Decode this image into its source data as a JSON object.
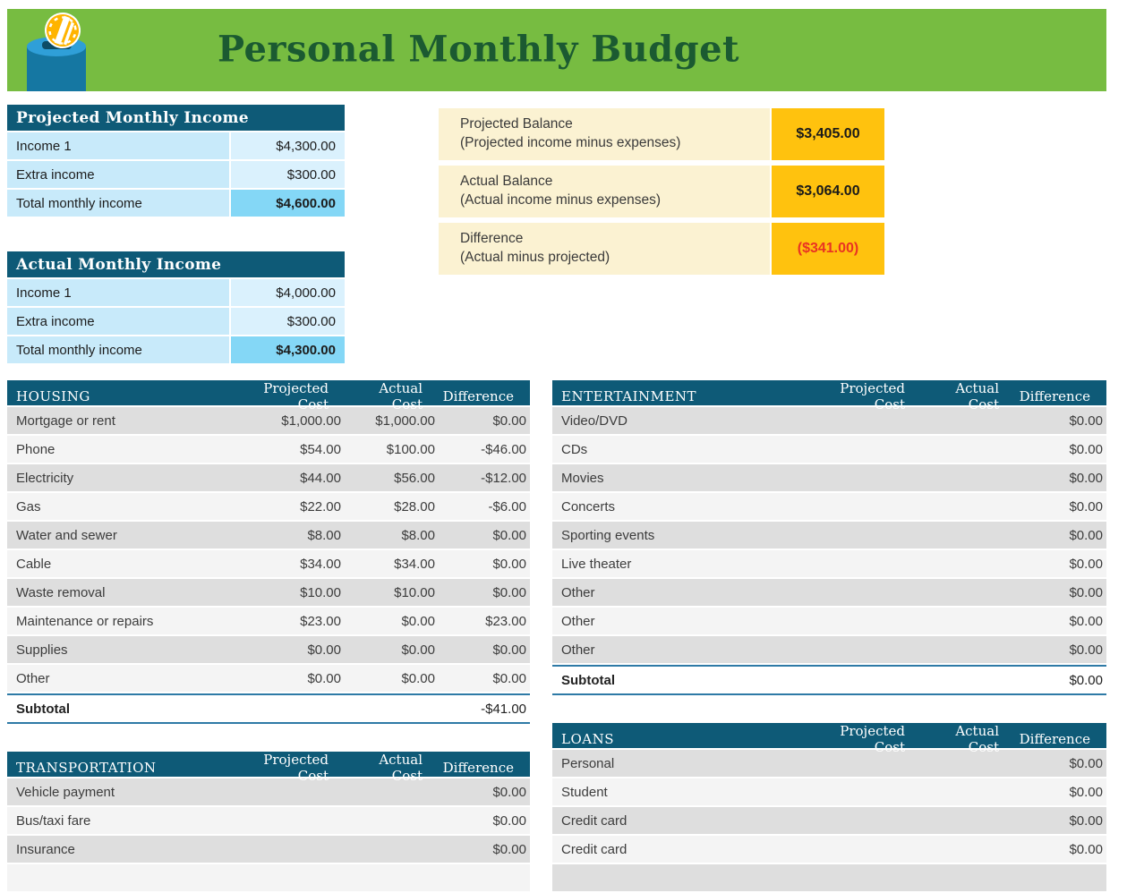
{
  "page": {
    "title": "Personal Monthly Budget"
  },
  "icon": {
    "name": "coin-bank-icon"
  },
  "income_tables": [
    {
      "title": "Projected Monthly Income",
      "rows": [
        {
          "label": "Income 1",
          "value": "$4,300.00",
          "total": false
        },
        {
          "label": "Extra income",
          "value": "$300.00",
          "total": false
        },
        {
          "label": "Total monthly income",
          "value": "$4,600.00",
          "total": true
        }
      ]
    },
    {
      "title": "Actual Monthly Income",
      "rows": [
        {
          "label": "Income 1",
          "value": "$4,000.00",
          "total": false
        },
        {
          "label": "Extra income",
          "value": "$300.00",
          "total": false
        },
        {
          "label": "Total monthly income",
          "value": "$4,300.00",
          "total": true
        }
      ]
    }
  ],
  "balance_summary": {
    "rows": [
      {
        "label": "Projected Balance",
        "note": "(Projected income minus expenses)",
        "value": "$3,405.00",
        "negative": false
      },
      {
        "label": "Actual Balance",
        "note": "(Actual income minus expenses)",
        "value": "$3,064.00",
        "negative": false
      },
      {
        "label": "Difference",
        "note": "(Actual minus projected)",
        "value": "($341.00)",
        "negative": true
      }
    ]
  },
  "expense_columns": [
    "Projected Cost",
    "Actual Cost",
    "Difference"
  ],
  "expense_tables": [
    {
      "name": "HOUSING",
      "column": "left",
      "rows": [
        [
          "Mortgage or rent",
          "$1,000.00",
          "$1,000.00",
          "$0.00"
        ],
        [
          "Phone",
          "$54.00",
          "$100.00",
          "-$46.00"
        ],
        [
          "Electricity",
          "$44.00",
          "$56.00",
          "-$12.00"
        ],
        [
          "Gas",
          "$22.00",
          "$28.00",
          "-$6.00"
        ],
        [
          "Water and sewer",
          "$8.00",
          "$8.00",
          "$0.00"
        ],
        [
          "Cable",
          "$34.00",
          "$34.00",
          "$0.00"
        ],
        [
          "Waste removal",
          "$10.00",
          "$10.00",
          "$0.00"
        ],
        [
          "Maintenance or repairs",
          "$23.00",
          "$0.00",
          "$23.00"
        ],
        [
          "Supplies",
          "$0.00",
          "$0.00",
          "$0.00"
        ],
        [
          "Other",
          "$0.00",
          "$0.00",
          "$0.00"
        ]
      ],
      "subtotal": {
        "label": "Subtotal",
        "projected": "",
        "actual": "",
        "difference": "-$41.00"
      },
      "clipped": false
    },
    {
      "name": "ENTERTAINMENT",
      "column": "right",
      "rows": [
        [
          "Video/DVD",
          "",
          "",
          "$0.00"
        ],
        [
          "CDs",
          "",
          "",
          "$0.00"
        ],
        [
          "Movies",
          "",
          "",
          "$0.00"
        ],
        [
          "Concerts",
          "",
          "",
          "$0.00"
        ],
        [
          "Sporting events",
          "",
          "",
          "$0.00"
        ],
        [
          "Live theater",
          "",
          "",
          "$0.00"
        ],
        [
          "Other",
          "",
          "",
          "$0.00"
        ],
        [
          "Other",
          "",
          "",
          "$0.00"
        ],
        [
          "Other",
          "",
          "",
          "$0.00"
        ]
      ],
      "subtotal": {
        "label": "Subtotal",
        "projected": "",
        "actual": "",
        "difference": "$0.00"
      },
      "clipped": false
    },
    {
      "name": "TRANSPORTATION",
      "column": "left",
      "rows": [
        [
          "Vehicle payment",
          "",
          "",
          "$0.00"
        ],
        [
          "Bus/taxi fare",
          "",
          "",
          "$0.00"
        ],
        [
          "Insurance",
          "",
          "",
          "$0.00"
        ]
      ],
      "subtotal": null,
      "clipped": true
    },
    {
      "name": "LOANS",
      "column": "right",
      "rows": [
        [
          "Personal",
          "",
          "",
          "$0.00"
        ],
        [
          "Student",
          "",
          "",
          "$0.00"
        ],
        [
          "Credit card",
          "",
          "",
          "$0.00"
        ],
        [
          "Credit card",
          "",
          "",
          "$0.00"
        ]
      ],
      "subtotal": null,
      "clipped": true
    }
  ],
  "colors": {
    "banner_green": "#77BC41",
    "title_green": "#1B5A31",
    "header_teal": "#0E5A77",
    "income_row_blue": "#C8EAFA",
    "income_value_blue": "#DAF1FD",
    "income_total_blue": "#84D7F6",
    "balance_cream": "#FBF2D2",
    "balance_amber": "#FFC20E",
    "negative_red": "#E93323",
    "row_dark_gray": "#DEDEDE",
    "row_light_gray": "#F4F4F4",
    "subtotal_border_blue": "#2E7AA6"
  }
}
